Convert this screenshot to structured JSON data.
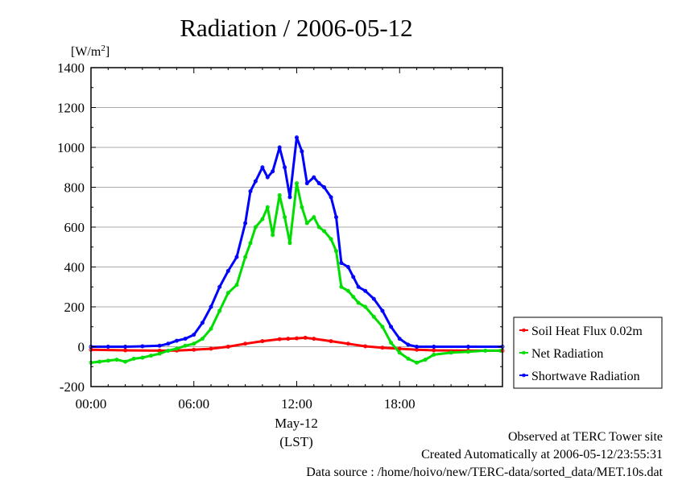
{
  "chart_data": {
    "type": "line",
    "title": "Radiation / 2006-05-12",
    "ylabel": "[W/m²]",
    "ylabel_base": "[W/m",
    "ylabel_sup": "2",
    "ylabel_close": "]",
    "ylim": [
      -200,
      1400
    ],
    "yticks": [
      "1400",
      "1200",
      "1000",
      "800",
      "600",
      "400",
      "200",
      "0",
      "-200"
    ],
    "xlim": [
      0,
      24
    ],
    "xticks": [
      "00:00",
      "06:00",
      "12:00",
      "18:00"
    ],
    "xlabel_date": "May-12",
    "xlabel": "(LST)",
    "grid": true,
    "legend_position": "right",
    "series": [
      {
        "name": "Soil Heat Flux 0.02m",
        "color": "#ff0000",
        "x": [
          0,
          2,
          4,
          5,
          6,
          7,
          8,
          9,
          10,
          11,
          11.5,
          12,
          12.5,
          13,
          14,
          15,
          16,
          17,
          18,
          19,
          20,
          22,
          24
        ],
        "values": [
          -15,
          -18,
          -20,
          -19,
          -15,
          -10,
          0,
          15,
          28,
          38,
          40,
          42,
          45,
          40,
          28,
          15,
          2,
          -5,
          -10,
          -15,
          -18,
          -20,
          -20
        ]
      },
      {
        "name": "Net Radiation",
        "color": "#00dd00",
        "x": [
          0,
          0.5,
          1,
          1.5,
          2,
          2.5,
          3,
          3.5,
          4,
          4.5,
          5,
          5.5,
          6,
          6.5,
          7,
          7.5,
          8,
          8.5,
          9,
          9.3,
          9.6,
          10,
          10.3,
          10.6,
          11,
          11.3,
          11.6,
          12,
          12.3,
          12.6,
          13,
          13.3,
          13.6,
          14,
          14.3,
          14.6,
          15,
          15.3,
          15.6,
          16,
          16.5,
          17,
          17.5,
          18,
          18.5,
          19,
          19.5,
          20,
          21,
          22,
          23,
          23.9
        ],
        "values": [
          -80,
          -75,
          -70,
          -65,
          -75,
          -60,
          -55,
          -45,
          -35,
          -20,
          -10,
          5,
          15,
          40,
          90,
          180,
          270,
          310,
          450,
          520,
          600,
          640,
          700,
          560,
          760,
          650,
          520,
          820,
          700,
          620,
          650,
          600,
          580,
          540,
          480,
          300,
          280,
          250,
          220,
          200,
          150,
          100,
          20,
          -30,
          -60,
          -80,
          -65,
          -40,
          -30,
          -25,
          -20,
          -20
        ]
      },
      {
        "name": "Shortwave Radiation",
        "color": "#0000ff",
        "x": [
          0,
          1,
          2,
          3,
          4,
          4.5,
          5,
          5.5,
          6,
          6.5,
          7,
          7.5,
          8,
          8.5,
          9,
          9.3,
          9.6,
          10,
          10.3,
          10.6,
          11,
          11.3,
          11.6,
          12,
          12.3,
          12.6,
          13,
          13.3,
          13.6,
          14,
          14.3,
          14.6,
          15,
          15.3,
          15.6,
          16,
          16.5,
          17,
          17.5,
          18,
          18.5,
          19,
          20,
          22,
          24
        ],
        "values": [
          0,
          0,
          0,
          2,
          5,
          15,
          30,
          40,
          60,
          120,
          200,
          300,
          380,
          450,
          620,
          780,
          830,
          900,
          850,
          880,
          1000,
          900,
          750,
          1050,
          980,
          820,
          850,
          820,
          800,
          750,
          650,
          420,
          400,
          350,
          300,
          280,
          240,
          180,
          100,
          40,
          10,
          0,
          0,
          0,
          0
        ]
      }
    ]
  },
  "footer": {
    "line1": "Observed at TERC Tower site",
    "line2": "Created Automatically at 2006-05-12/23:55:31",
    "line3": "Data source : /home/hoivo/new/TERC-data/sorted_data/MET.10s.dat"
  }
}
